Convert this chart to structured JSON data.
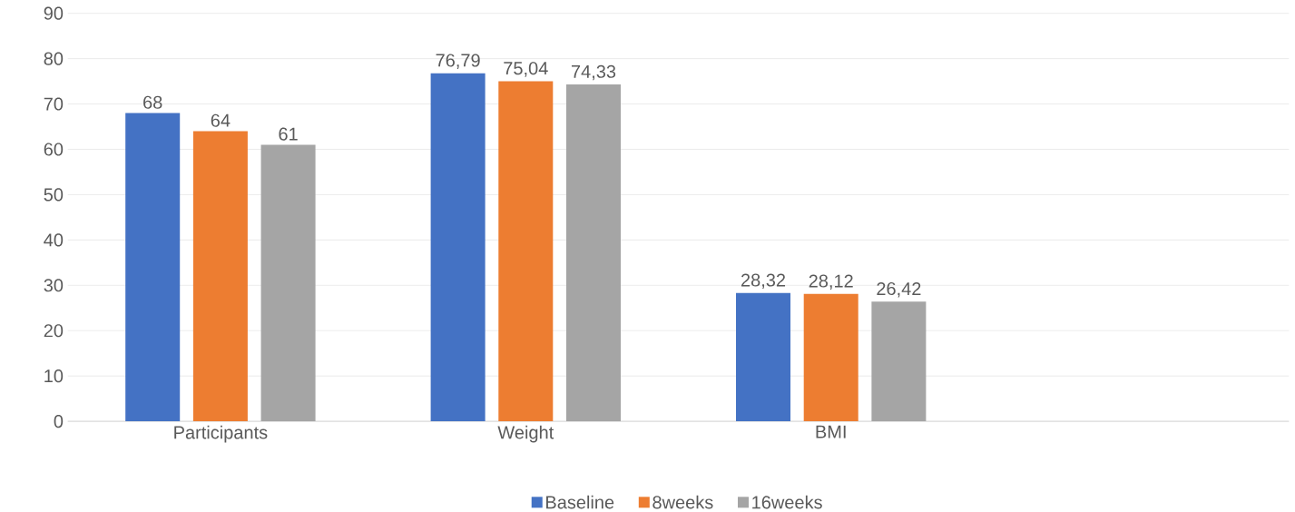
{
  "chart_data": {
    "type": "bar",
    "categories": [
      "Participants",
      "Weight",
      "BMI",
      null
    ],
    "series": [
      {
        "name": "Baseline",
        "color": "#4472c4",
        "values": [
          68,
          76.79,
          28.32,
          null
        ],
        "value_labels": [
          "68",
          "76,79",
          "28,32",
          null
        ]
      },
      {
        "name": "8weeks",
        "color": "#ed7d31",
        "values": [
          64,
          75.04,
          28.12,
          null
        ],
        "value_labels": [
          "64",
          "75,04",
          "28,12",
          null
        ]
      },
      {
        "name": "16weeks",
        "color": "#a5a5a5",
        "values": [
          61,
          74.33,
          26.42,
          null
        ],
        "value_labels": [
          "61",
          "74,33",
          "26,42",
          null
        ]
      }
    ],
    "ylim": [
      0,
      90
    ],
    "yticks": [
      0,
      10,
      20,
      30,
      40,
      50,
      60,
      70,
      80,
      90
    ],
    "grid": "y",
    "legend": "bottom"
  }
}
